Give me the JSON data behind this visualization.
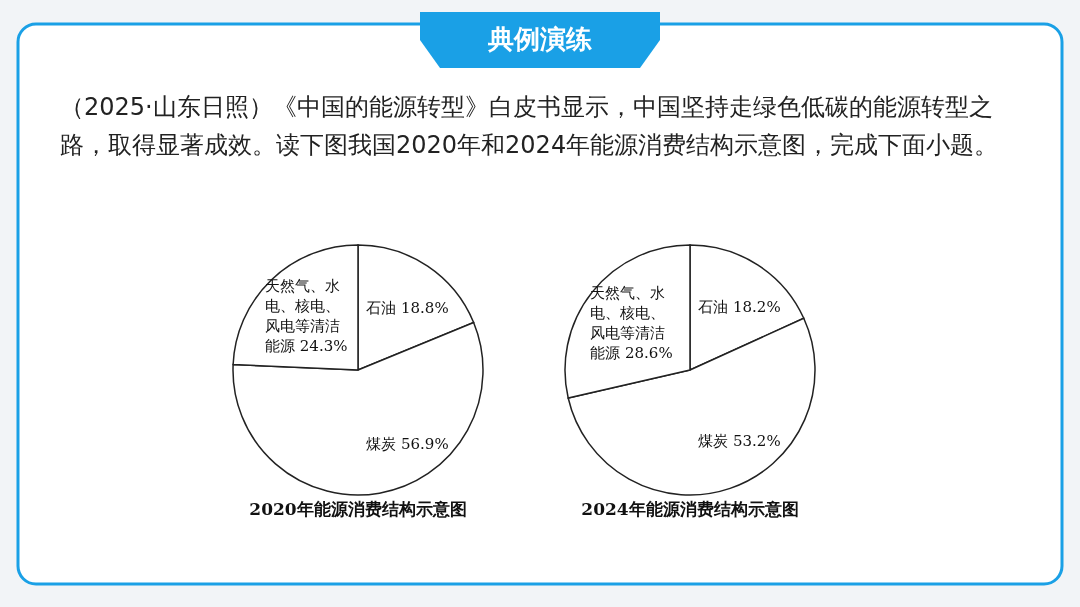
{
  "chart_data": [
    {
      "type": "other",
      "title": "典例演练",
      "annotations": [
        "（2025·山东日照）《中国的能源转型》白皮书显示，中国坚持走绿色低碳的能源转型之路，取得显著成效。读下图我国2020年和2024年能源消费结构示意图，完成下面小题。"
      ]
    },
    {
      "type": "pie",
      "title": "2020年能源消费结构示意图",
      "categories": [
        "石油",
        "煤炭",
        "天然气、水电、核电、风电等清洁能源"
      ],
      "values": [
        18.8,
        56.9,
        24.3
      ],
      "value_labels": [
        "18.8%",
        "56.9%",
        "24.3%"
      ],
      "colors": [
        "#ffffff",
        "#ffffff",
        "#ffffff"
      ]
    },
    {
      "type": "pie",
      "title": "2024年能源消费结构示意图",
      "categories": [
        "石油",
        "煤炭",
        "天然气、水电、核电、风电等清洁能源"
      ],
      "values": [
        18.2,
        53.2,
        28.6
      ],
      "value_labels": [
        "18.2%",
        "53.2%",
        "28.6%"
      ],
      "colors": [
        "#ffffff",
        "#ffffff",
        "#ffffff"
      ]
    }
  ]
}
